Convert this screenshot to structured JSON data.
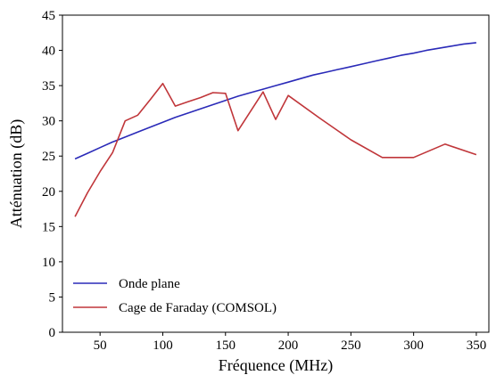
{
  "chart_data": {
    "type": "line",
    "title": "",
    "xlabel": "Fréquence (MHz)",
    "ylabel": "Atténuation (dB)",
    "xlim": [
      20,
      360
    ],
    "ylim": [
      0,
      45
    ],
    "xticks": [
      50,
      100,
      150,
      200,
      250,
      300,
      350
    ],
    "yticks": [
      0,
      5,
      10,
      15,
      20,
      25,
      30,
      35,
      40,
      45
    ],
    "grid": false,
    "legend_position": "lower-left",
    "series": [
      {
        "name": "Onde plane",
        "color": "#2a2ab8",
        "x": [
          30,
          40,
          50,
          60,
          70,
          80,
          90,
          100,
          110,
          120,
          130,
          140,
          150,
          160,
          170,
          180,
          190,
          200,
          210,
          220,
          230,
          240,
          250,
          260,
          270,
          280,
          290,
          300,
          310,
          320,
          330,
          340,
          350
        ],
        "y": [
          24.6,
          25.4,
          26.2,
          27.0,
          27.7,
          28.4,
          29.1,
          29.8,
          30.5,
          31.1,
          31.7,
          32.3,
          32.9,
          33.5,
          34.0,
          34.5,
          35.0,
          35.5,
          36.0,
          36.5,
          36.9,
          37.3,
          37.7,
          38.1,
          38.5,
          38.9,
          39.3,
          39.6,
          40.0,
          40.3,
          40.6,
          40.9,
          41.1
        ]
      },
      {
        "name": "Cage de Faraday (COMSOL)",
        "color": "#c0363a",
        "x": [
          30,
          40,
          50,
          60,
          70,
          80,
          90,
          100,
          110,
          120,
          130,
          140,
          150,
          160,
          180,
          190,
          200,
          225,
          250,
          275,
          300,
          325,
          350
        ],
        "y": [
          16.4,
          19.8,
          22.8,
          25.5,
          30.0,
          30.8,
          33.0,
          35.3,
          32.1,
          32.7,
          33.3,
          34.0,
          33.9,
          28.6,
          34.1,
          30.2,
          33.6,
          30.4,
          27.3,
          24.8,
          24.8,
          26.7,
          25.2
        ]
      }
    ]
  }
}
